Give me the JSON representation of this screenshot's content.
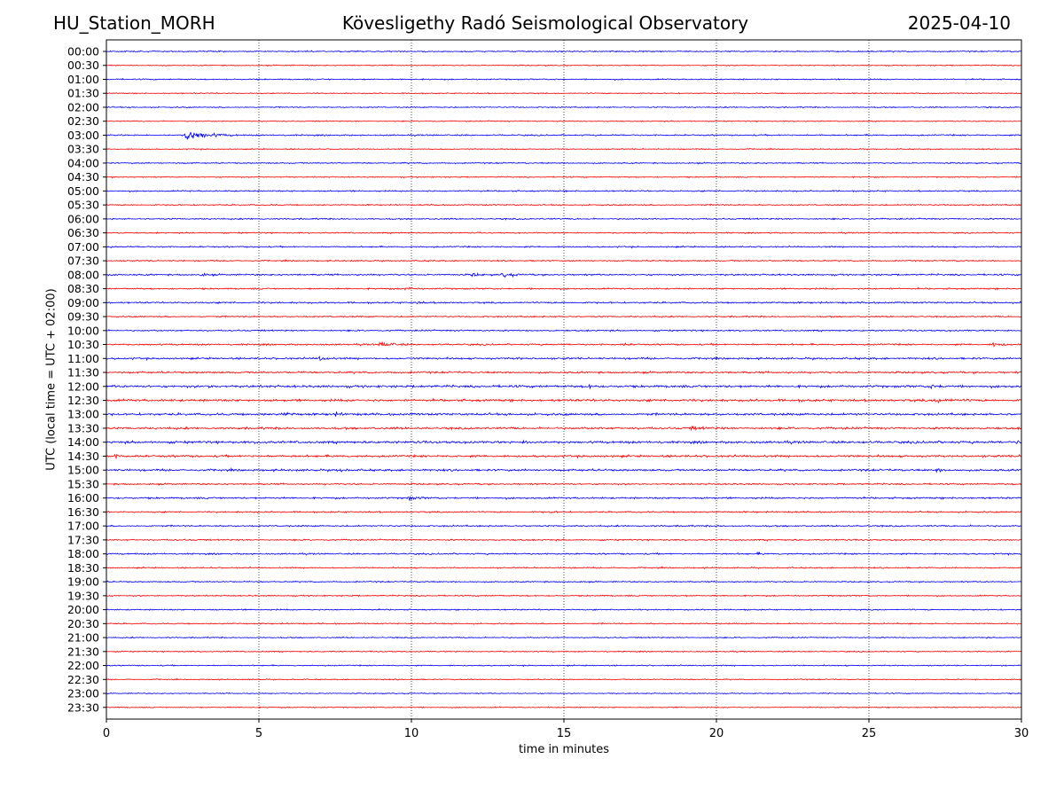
{
  "header": {
    "station": "HU_Station_MORH",
    "title": "Kövesligethy Radó Seismological Observatory",
    "date": "2025-04-10"
  },
  "chart_data": {
    "type": "line",
    "title": "Kövesligethy Radó Seismological Observatory",
    "xlabel": "time in minutes",
    "ylabel": "UTC (local time = UTC + 02:00)",
    "xlim": [
      0,
      30
    ],
    "x_ticks": [
      0,
      5,
      10,
      15,
      20,
      25,
      30
    ],
    "x_grid": "dotted vertical lines at each x tick",
    "row_labels": [
      "00:00",
      "00:30",
      "01:00",
      "01:30",
      "02:00",
      "02:30",
      "03:00",
      "03:30",
      "04:00",
      "04:30",
      "05:00",
      "05:30",
      "06:00",
      "06:30",
      "07:00",
      "07:30",
      "08:00",
      "08:30",
      "09:00",
      "09:30",
      "10:00",
      "10:30",
      "11:00",
      "11:30",
      "12:00",
      "12:30",
      "13:00",
      "13:30",
      "14:00",
      "14:30",
      "15:00",
      "15:30",
      "16:00",
      "16:30",
      "17:00",
      "17:30",
      "18:00",
      "18:30",
      "19:00",
      "19:30",
      "20:00",
      "20:30",
      "21:00",
      "21:30",
      "22:00",
      "22:30",
      "23:00",
      "23:30"
    ],
    "row_colors": [
      "#0000ff",
      "#ff0000"
    ],
    "noise_amplitude": [
      1.1,
      0.9,
      1.1,
      0.9,
      1.0,
      0.9,
      1.2,
      0.9,
      1.1,
      1.0,
      1.2,
      1.1,
      1.2,
      1.1,
      1.2,
      1.1,
      1.4,
      1.3,
      1.4,
      1.2,
      1.3,
      1.4,
      1.6,
      1.6,
      2.0,
      2.0,
      1.9,
      1.8,
      2.0,
      1.8,
      1.7,
      1.3,
      1.5,
      1.3,
      1.3,
      1.2,
      1.3,
      1.1,
      1.1,
      1.1,
      1.1,
      1.1,
      1.0,
      1.0,
      1.0,
      0.9,
      0.9,
      0.9
    ],
    "events": [
      {
        "row": "03:00",
        "minute": 2.6,
        "amplitude": 9,
        "duration_min": 1.8
      },
      {
        "row": "08:00",
        "minute": 3.1,
        "amplitude": 2.5,
        "duration_min": 0.5
      },
      {
        "row": "08:00",
        "minute": 12.0,
        "amplitude": 2.5,
        "duration_min": 0.6
      },
      {
        "row": "08:00",
        "minute": 13.0,
        "amplitude": 3.5,
        "duration_min": 1.0
      },
      {
        "row": "08:30",
        "minute": 9.8,
        "amplitude": 3.5,
        "duration_min": 0.5
      },
      {
        "row": "09:00",
        "minute": 10.2,
        "amplitude": 2,
        "duration_min": 0.4
      },
      {
        "row": "10:30",
        "minute": 9.0,
        "amplitude": 5.5,
        "duration_min": 0.9
      },
      {
        "row": "10:30",
        "minute": 17.0,
        "amplitude": 2,
        "duration_min": 0.4
      },
      {
        "row": "10:30",
        "minute": 29.1,
        "amplitude": 4.5,
        "duration_min": 0.6
      },
      {
        "row": "11:00",
        "minute": 7.0,
        "amplitude": 4,
        "duration_min": 0.5
      },
      {
        "row": "11:00",
        "minute": 13.5,
        "amplitude": 2,
        "duration_min": 0.4
      },
      {
        "row": "12:00",
        "minute": 3.3,
        "amplitude": 3,
        "duration_min": 0.4
      },
      {
        "row": "12:00",
        "minute": 15.8,
        "amplitude": 4,
        "duration_min": 0.4
      },
      {
        "row": "12:00",
        "minute": 27.0,
        "amplitude": 2.5,
        "duration_min": 0.8
      },
      {
        "row": "12:30",
        "minute": 27.2,
        "amplitude": 3,
        "duration_min": 1.2
      },
      {
        "row": "13:00",
        "minute": 5.8,
        "amplitude": 2.5,
        "duration_min": 0.8
      },
      {
        "row": "13:00",
        "minute": 7.5,
        "amplitude": 2.5,
        "duration_min": 0.5
      },
      {
        "row": "13:30",
        "minute": 19.2,
        "amplitude": 2.5,
        "duration_min": 0.8
      },
      {
        "row": "14:00",
        "minute": 5.0,
        "amplitude": 2.5,
        "duration_min": 0.4
      },
      {
        "row": "14:00",
        "minute": 13.7,
        "amplitude": 2.5,
        "duration_min": 0.8
      },
      {
        "row": "14:00",
        "minute": 29.9,
        "amplitude": 3,
        "duration_min": 0.2
      },
      {
        "row": "14:30",
        "minute": 0.3,
        "amplitude": 3,
        "duration_min": 0.3
      },
      {
        "row": "15:00",
        "minute": 7.6,
        "amplitude": 2.5,
        "duration_min": 0.4
      },
      {
        "row": "15:00",
        "minute": 27.2,
        "amplitude": 2.5,
        "duration_min": 0.6
      },
      {
        "row": "16:00",
        "minute": 9.9,
        "amplitude": 3,
        "duration_min": 0.8
      },
      {
        "row": "16:30",
        "minute": 14.6,
        "amplitude": 1.8,
        "duration_min": 0.3
      },
      {
        "row": "18:00",
        "minute": 21.4,
        "amplitude": 1.8,
        "duration_min": 0.3
      }
    ]
  }
}
